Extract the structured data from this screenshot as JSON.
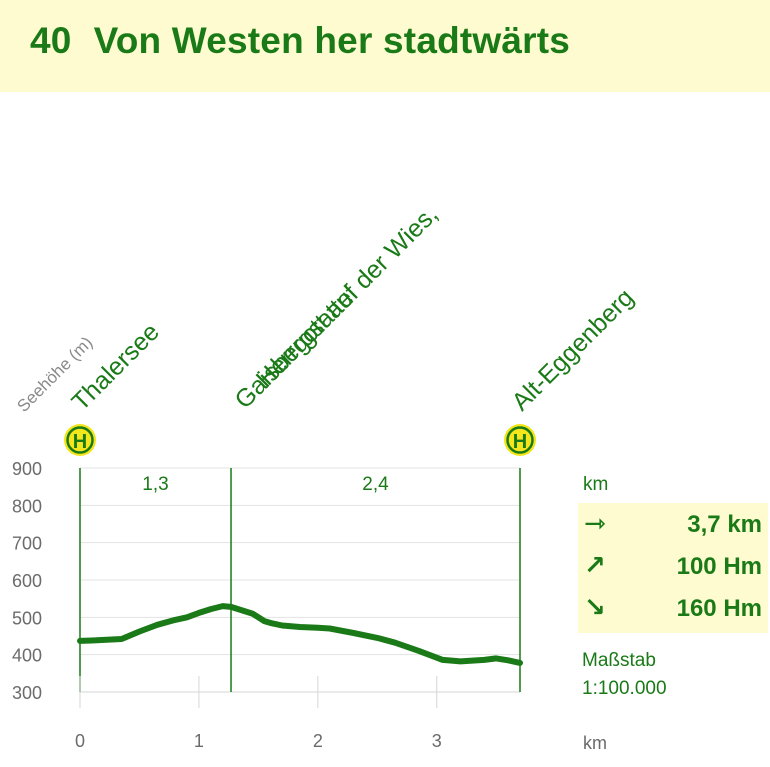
{
  "title": {
    "number": "40",
    "text": "Von Westen her stadtwärts"
  },
  "colors": {
    "accent": "#1a7a17",
    "banner": "#fdfbcf",
    "axis_text": "#6b6b6b"
  },
  "stops": [
    {
      "km": 0,
      "lines": [
        "Thalersee"
      ],
      "bus_stop": true,
      "bus_label": "H"
    },
    {
      "km": 1.27,
      "lines": [
        "Herrgott auf der Wies,",
        "Gaisbergsattel"
      ],
      "bus_stop": false
    },
    {
      "km": 3.7,
      "lines": [
        "Alt-Eggenberg"
      ],
      "bus_stop": true,
      "bus_label": "H"
    }
  ],
  "segments": [
    {
      "label": "1,3",
      "from_km": 0,
      "to_km": 1.27
    },
    {
      "label": "2,4",
      "from_km": 1.27,
      "to_km": 3.7
    }
  ],
  "stats": [
    {
      "icon": "arrow-right-icon",
      "glyph": "⇾",
      "value": "3,7 km"
    },
    {
      "icon": "arrow-up-right-icon",
      "glyph": "↗",
      "value": "100 Hm"
    },
    {
      "icon": "arrow-down-right-icon",
      "glyph": "↘",
      "value": "160 Hm"
    }
  ],
  "scale": {
    "label": "Maßstab",
    "value": "1:100.000"
  },
  "km_label_top": "km",
  "chart_data": {
    "type": "line",
    "title": "",
    "ylabel": "Seehöhe (m)",
    "xlabel": "km",
    "ylim": [
      300,
      900
    ],
    "xlim": [
      0,
      3.7
    ],
    "yticks": [
      300,
      400,
      500,
      600,
      700,
      800,
      900
    ],
    "ytick_labels": [
      "300",
      "400",
      "500",
      "600",
      "700",
      "800",
      "900"
    ],
    "xticks": [
      0,
      1,
      2,
      3
    ],
    "xtick_labels": [
      "0",
      "1",
      "2",
      "3"
    ],
    "grid": "y-only",
    "series": [
      {
        "x": [
          0,
          0.1,
          0.35,
          0.5,
          0.65,
          0.8,
          0.9,
          1.0,
          1.1,
          1.2,
          1.27,
          1.35,
          1.45,
          1.55,
          1.6,
          1.7,
          1.85,
          2.0,
          2.1,
          2.3,
          2.5,
          2.65,
          2.85,
          3.05,
          3.2,
          3.4,
          3.5,
          3.6,
          3.7
        ],
        "y": [
          437,
          438,
          442,
          462,
          480,
          493,
          500,
          512,
          522,
          530,
          528,
          520,
          510,
          490,
          485,
          478,
          474,
          472,
          470,
          458,
          445,
          432,
          410,
          386,
          382,
          386,
          390,
          385,
          378
        ]
      }
    ]
  }
}
